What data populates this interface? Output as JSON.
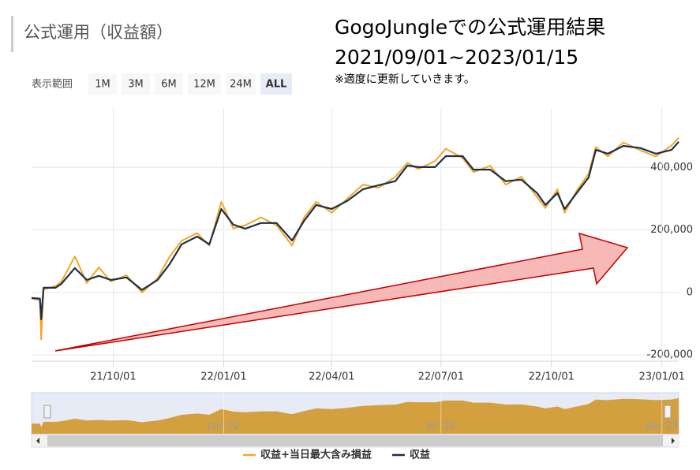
{
  "header": {
    "title": "公式運用（収益額）"
  },
  "range_selector": {
    "label": "表示範囲",
    "buttons": [
      "1M",
      "3M",
      "6M",
      "12M",
      "24M",
      "ALL"
    ]
  },
  "annotation": {
    "title": "GogoJungleでの公式運用結果",
    "period": "2021/09/01~2023/01/15",
    "note": "※適度に更新していきます。"
  },
  "chart_data": {
    "type": "line",
    "x": [
      "21/07/25",
      "21/08/01",
      "21/08/02",
      "21/08/04",
      "21/08/14",
      "21/08/19",
      "21/08/30",
      "21/09/09",
      "21/09/19",
      "21/09/29",
      "21/10/12",
      "21/10/25",
      "21/11/07",
      "21/11/17",
      "21/11/27",
      "21/12/10",
      "21/12/20",
      "21/12/30",
      "22/01/09",
      "22/01/19",
      "22/02/01",
      "22/02/14",
      "22/02/27",
      "22/03/09",
      "22/03/19",
      "22/04/01",
      "22/04/14",
      "22/04/27",
      "22/05/10",
      "22/05/24",
      "22/06/03",
      "22/06/12",
      "22/06/26",
      "22/07/05",
      "22/07/19",
      "22/07/28",
      "22/08/11",
      "22/08/24",
      "22/09/06",
      "22/09/19",
      "22/09/26",
      "22/10/06",
      "22/10/12",
      "22/10/22",
      "22/11/01",
      "22/11/07",
      "22/11/17",
      "22/11/30",
      "22/12/14",
      "22/12/27",
      "23/01/09",
      "23/01/15"
    ],
    "series": [
      {
        "name": "収益+当日最大含み損益",
        "color": "#f5a623",
        "values": [
          -20000,
          -25000,
          -150000,
          10000,
          20000,
          35000,
          115000,
          30000,
          80000,
          35000,
          55000,
          0,
          45000,
          115000,
          165000,
          190000,
          150000,
          290000,
          205000,
          215000,
          240000,
          215000,
          150000,
          240000,
          290000,
          255000,
          300000,
          345000,
          335000,
          370000,
          415000,
          395000,
          420000,
          460000,
          430000,
          385000,
          405000,
          345000,
          370000,
          305000,
          270000,
          330000,
          255000,
          325000,
          380000,
          465000,
          435000,
          480000,
          455000,
          435000,
          470000,
          495000
        ]
      },
      {
        "name": "収益",
        "color": "#1b2f4b",
        "values": [
          -18000,
          -20000,
          -86000,
          15000,
          15000,
          28000,
          78000,
          40000,
          53000,
          40000,
          48000,
          8000,
          40000,
          91000,
          154000,
          179000,
          154000,
          267000,
          217000,
          204000,
          222000,
          222000,
          166000,
          229000,
          280000,
          267000,
          293000,
          330000,
          343000,
          356000,
          406000,
          401000,
          401000,
          436000,
          436000,
          393000,
          393000,
          356000,
          361000,
          318000,
          280000,
          318000,
          267000,
          318000,
          368000,
          456000,
          444000,
          469000,
          462000,
          444000,
          456000,
          482000
        ]
      }
    ],
    "xlim": [
      "21/07/25",
      "23/01/15"
    ],
    "xticks": [
      "21/10/01",
      "22/01/01",
      "22/04/01",
      "22/07/01",
      "22/10/01",
      "23/01/01"
    ],
    "ylim": [
      -220000,
      590000
    ],
    "yticks": [
      {
        "value": -200000,
        "label": "-200,000"
      },
      0,
      {
        "value": 200000,
        "label": "200,000"
      },
      {
        "value": 400000,
        "label": "400,000"
      }
    ],
    "grid": true,
    "navigator_ticks": [
      {
        "value": "22/01/01",
        "label": "Jan '22"
      },
      {
        "value": "22/07/01",
        "label": "Jul '22"
      },
      {
        "value": "23/01/01",
        "label": "Jan '23"
      }
    ],
    "navigator_color": "#d4a03f"
  }
}
